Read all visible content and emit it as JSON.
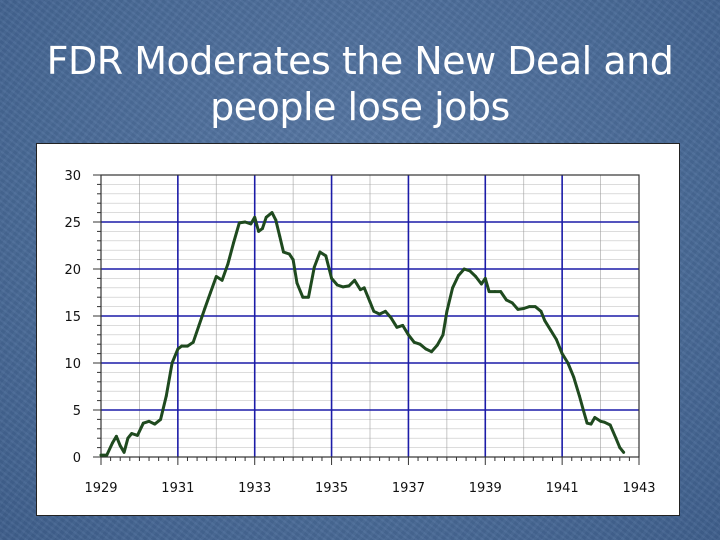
{
  "slide": {
    "title_line1": "FDR Moderates the New Deal and",
    "title_line2": "people lose jobs"
  },
  "chart_data": {
    "type": "line",
    "title": "",
    "xlabel": "",
    "ylabel": "",
    "xlim": [
      1929,
      1943
    ],
    "ylim": [
      0,
      30
    ],
    "x_ticks": [
      1929,
      1931,
      1933,
      1935,
      1937,
      1939,
      1941,
      1943
    ],
    "y_ticks": [
      0,
      5,
      10,
      15,
      20,
      25,
      30
    ],
    "grid": true,
    "line_color": "#1f4a1f",
    "grid_major_color": "#1c1ca8",
    "grid_minor_color": "#999999",
    "series": [
      {
        "x": [
          1929.0,
          1929.15,
          1929.3,
          1929.4,
          1929.5,
          1929.6,
          1929.7,
          1929.8,
          1929.95,
          1930.1,
          1930.25,
          1930.4,
          1930.55,
          1930.7,
          1930.85,
          1931.0,
          1931.1,
          1931.25,
          1931.4,
          1931.55,
          1931.7,
          1931.85,
          1932.0,
          1932.15,
          1932.3,
          1932.45,
          1932.6,
          1932.75,
          1932.9,
          1933.0,
          1933.1,
          1933.2,
          1933.3,
          1933.45,
          1933.55,
          1933.65,
          1933.75,
          1933.9,
          1934.0,
          1934.1,
          1934.25,
          1934.4,
          1934.55,
          1934.7,
          1934.85,
          1935.0,
          1935.15,
          1935.3,
          1935.45,
          1935.6,
          1935.75,
          1935.85,
          1936.0,
          1936.1,
          1936.25,
          1936.4,
          1936.55,
          1936.7,
          1936.85,
          1937.0,
          1937.15,
          1937.3,
          1937.45,
          1937.6,
          1937.75,
          1937.9,
          1938.0,
          1938.15,
          1938.3,
          1938.45,
          1938.6,
          1938.75,
          1938.9,
          1939.0,
          1939.1,
          1939.25,
          1939.4,
          1939.55,
          1939.7,
          1939.85,
          1940.0,
          1940.15,
          1940.3,
          1940.45,
          1940.55,
          1940.7,
          1940.85,
          1941.0,
          1941.15,
          1941.3,
          1941.45,
          1941.55,
          1941.65,
          1941.75,
          1941.85,
          1942.0,
          1942.1,
          1942.25,
          1942.4,
          1942.5,
          1942.6
        ],
        "y": [
          0.2,
          0.2,
          1.5,
          2.2,
          1.2,
          0.5,
          2.0,
          2.5,
          2.3,
          3.6,
          3.8,
          3.5,
          4.0,
          6.5,
          10.0,
          11.5,
          11.8,
          11.8,
          12.2,
          14.0,
          15.8,
          17.5,
          19.2,
          18.8,
          20.5,
          22.8,
          24.9,
          25.0,
          24.8,
          25.5,
          24.0,
          24.3,
          25.5,
          26.0,
          25.2,
          23.5,
          21.8,
          21.6,
          21.0,
          18.5,
          17.0,
          17.0,
          20.2,
          21.8,
          21.4,
          19.0,
          18.3,
          18.1,
          18.2,
          18.8,
          17.8,
          18.0,
          16.5,
          15.5,
          15.2,
          15.5,
          14.8,
          13.8,
          14.0,
          13.0,
          12.2,
          12.0,
          11.5,
          11.2,
          11.9,
          13.0,
          15.5,
          18.0,
          19.3,
          20.0,
          19.8,
          19.2,
          18.4,
          19.0,
          17.6,
          17.6,
          17.6,
          16.7,
          16.4,
          15.7,
          15.8,
          16.0,
          16.0,
          15.5,
          14.5,
          13.5,
          12.5,
          11.0,
          10.0,
          8.5,
          6.5,
          5.0,
          3.6,
          3.5,
          4.2,
          3.8,
          3.7,
          3.4,
          2.0,
          1.0,
          0.5
        ]
      }
    ]
  }
}
